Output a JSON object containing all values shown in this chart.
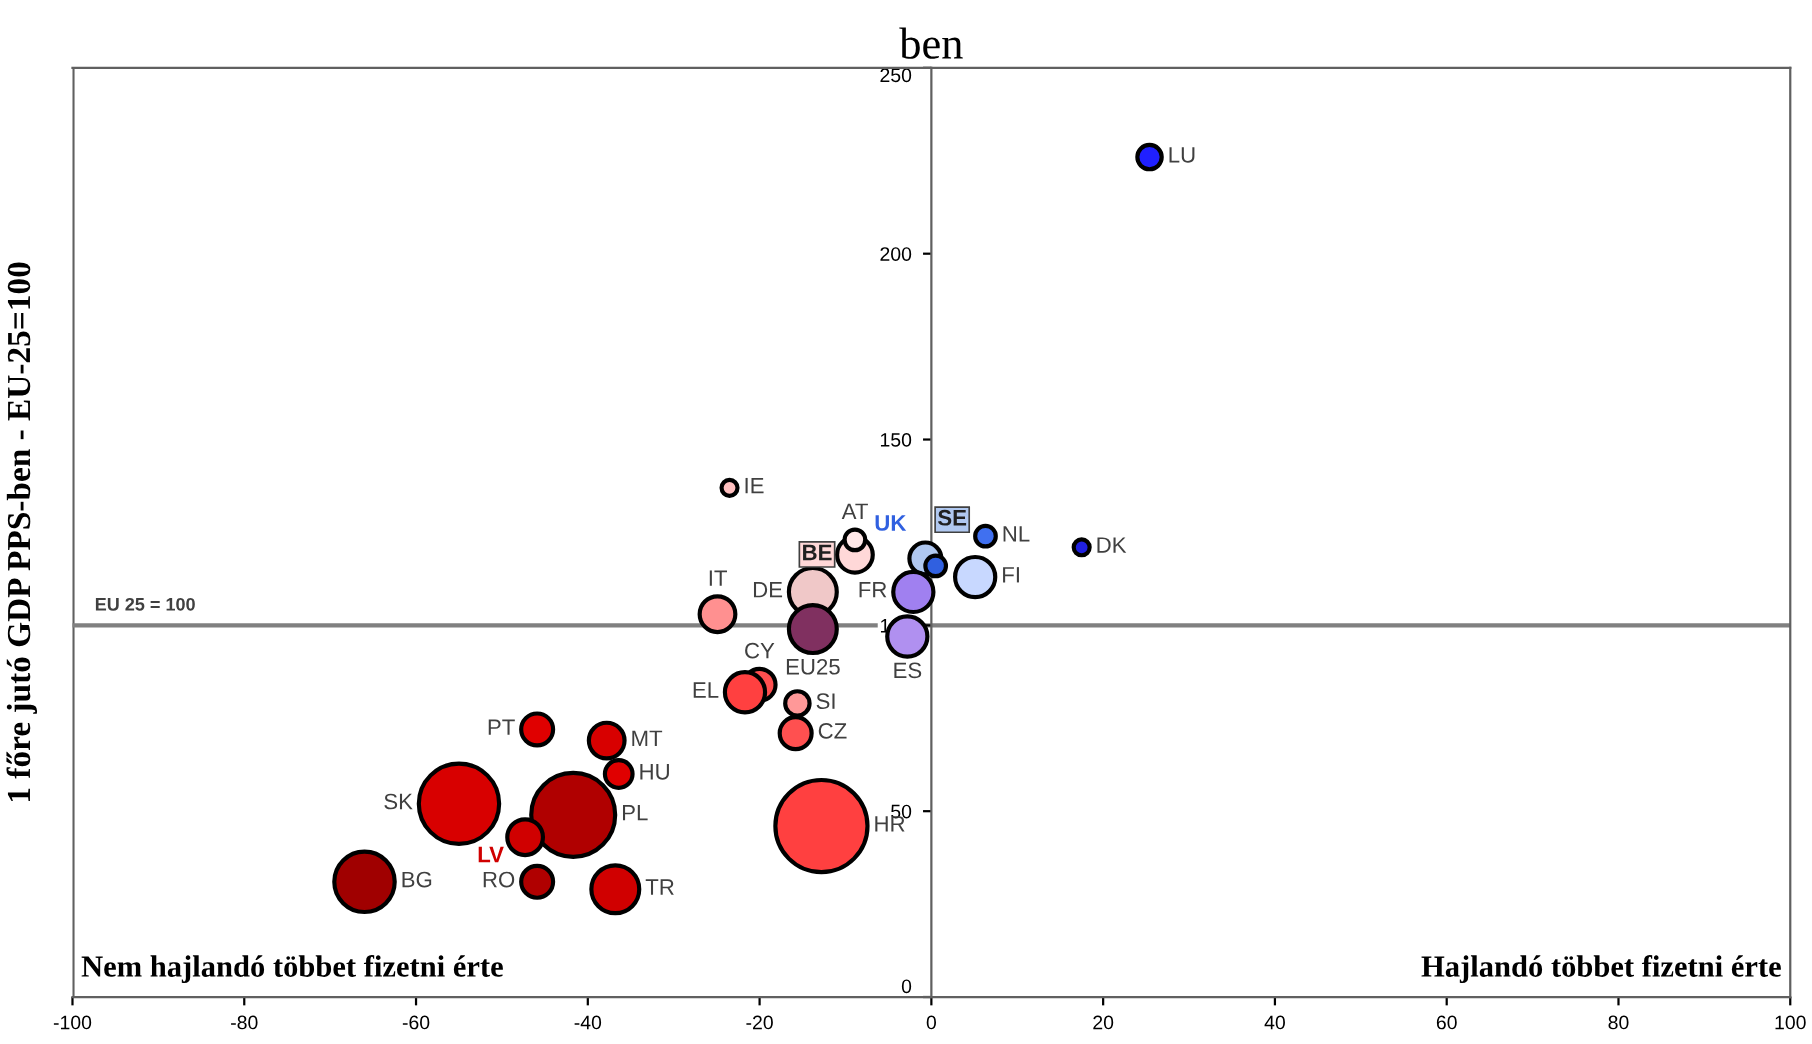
{
  "chart_data": {
    "type": "bubble",
    "title": "ben",
    "ylabel": "1 főre jutó GDP PPS-ben - EU-25=100",
    "xlim": [
      -100,
      100
    ],
    "xticks": [
      -100,
      -80,
      -60,
      -40,
      -20,
      0,
      20,
      40,
      60,
      80,
      100
    ],
    "ylim": [
      0,
      250
    ],
    "yticks": [
      0,
      50,
      100,
      150,
      200,
      250
    ],
    "grid": false,
    "legend": false,
    "ref_lines": [
      {
        "axis": "y",
        "value": 100,
        "label": "EU 25 = 100",
        "color": "#808080"
      }
    ],
    "annotations": [
      "Nem hajlandó többet fizetni érte",
      "Hajlandó többet fizetni érte"
    ],
    "series": [
      {
        "name": "LU",
        "color": "#2020ff",
        "x": [
          25.4
        ],
        "values": [
          226
        ],
        "sizes": [
          0.07
        ]
      },
      {
        "name": "IE",
        "color": "#ffc0c0",
        "x": [
          -23.5
        ],
        "values": [
          137
        ],
        "sizes": [
          0.03
        ]
      },
      {
        "name": "BE",
        "color": "#ffd8d8",
        "x": [
          -8.9
        ],
        "values": [
          119
        ],
        "sizes": [
          0.15
        ]
      },
      {
        "name": "AT",
        "color": "#ffe8e8",
        "x": [
          -8.9
        ],
        "values": [
          123
        ],
        "sizes": [
          0.05
        ]
      },
      {
        "name": "SE",
        "color": "#b0c8f0",
        "x": [
          -0.7
        ],
        "values": [
          118
        ],
        "sizes": [
          0.12
        ]
      },
      {
        "name": "UK",
        "color": "#3060e0",
        "x": [
          0.5
        ],
        "values": [
          116
        ],
        "sizes": [
          0.05
        ]
      },
      {
        "name": "NL",
        "color": "#4070f0",
        "x": [
          6.3
        ],
        "values": [
          124
        ],
        "sizes": [
          0.05
        ]
      },
      {
        "name": "DK",
        "color": "#2020e0",
        "x": [
          17.5
        ],
        "values": [
          121
        ],
        "sizes": [
          0.03
        ]
      },
      {
        "name": "FI",
        "color": "#c8d8ff",
        "x": [
          5.1
        ],
        "values": [
          113
        ],
        "sizes": [
          0.19
        ]
      },
      {
        "name": "DE",
        "color": "#f0c8c8",
        "x": [
          -13.8
        ],
        "values": [
          109
        ],
        "sizes": [
          0.27
        ]
      },
      {
        "name": "FR",
        "color": "#a080f0",
        "x": [
          -2.1
        ],
        "values": [
          109
        ],
        "sizes": [
          0.19
        ]
      },
      {
        "name": "IT",
        "color": "#ff9090",
        "x": [
          -24.9
        ],
        "values": [
          103
        ],
        "sizes": [
          0.15
        ]
      },
      {
        "name": "EU25",
        "color": "#803060",
        "x": [
          -13.8
        ],
        "values": [
          99
        ],
        "sizes": [
          0.27
        ]
      },
      {
        "name": "ES",
        "color": "#b090f0",
        "x": [
          -2.8
        ],
        "values": [
          97
        ],
        "sizes": [
          0.19
        ]
      },
      {
        "name": "CY",
        "color": "#ff5050",
        "x": [
          -20.0
        ],
        "values": [
          84
        ],
        "sizes": [
          0.12
        ]
      },
      {
        "name": "EL",
        "color": "#ff4040",
        "x": [
          -21.7
        ],
        "values": [
          82
        ],
        "sizes": [
          0.19
        ]
      },
      {
        "name": "SI",
        "color": "#ff9898",
        "x": [
          -15.6
        ],
        "values": [
          79
        ],
        "sizes": [
          0.07
        ]
      },
      {
        "name": "CZ",
        "color": "#ff5050",
        "x": [
          -15.8
        ],
        "values": [
          71
        ],
        "sizes": [
          0.12
        ]
      },
      {
        "name": "HR",
        "color": "#ff4040",
        "x": [
          -12.8
        ],
        "values": [
          46
        ],
        "sizes": [
          1
        ]
      },
      {
        "name": "PT",
        "color": "#e00000",
        "x": [
          -45.9
        ],
        "values": [
          72
        ],
        "sizes": [
          0.12
        ]
      },
      {
        "name": "MT",
        "color": "#d80000",
        "x": [
          -37.8
        ],
        "values": [
          69
        ],
        "sizes": [
          0.15
        ]
      },
      {
        "name": "HU",
        "color": "#e00000",
        "x": [
          -36.4
        ],
        "values": [
          60
        ],
        "sizes": [
          0.09
        ]
      },
      {
        "name": "PL",
        "color": "#b00000",
        "x": [
          -41.7
        ],
        "values": [
          49
        ],
        "sizes": [
          0.83
        ]
      },
      {
        "name": "SK",
        "color": "#d80000",
        "x": [
          -55.0
        ],
        "values": [
          52
        ],
        "sizes": [
          0.76
        ]
      },
      {
        "name": "LV",
        "color": "#d00000",
        "x": [
          -47.3
        ],
        "values": [
          43
        ],
        "sizes": [
          0.15
        ]
      },
      {
        "name": "RO",
        "color": "#b00000",
        "x": [
          -45.9
        ],
        "values": [
          31
        ],
        "sizes": [
          0.12
        ]
      },
      {
        "name": "TR",
        "color": "#d00000",
        "x": [
          -36.8
        ],
        "values": [
          29
        ],
        "sizes": [
          0.27
        ]
      },
      {
        "name": "BG",
        "color": "#a00000",
        "x": [
          -66.0
        ],
        "values": [
          31
        ],
        "sizes": [
          0.43
        ]
      }
    ]
  }
}
